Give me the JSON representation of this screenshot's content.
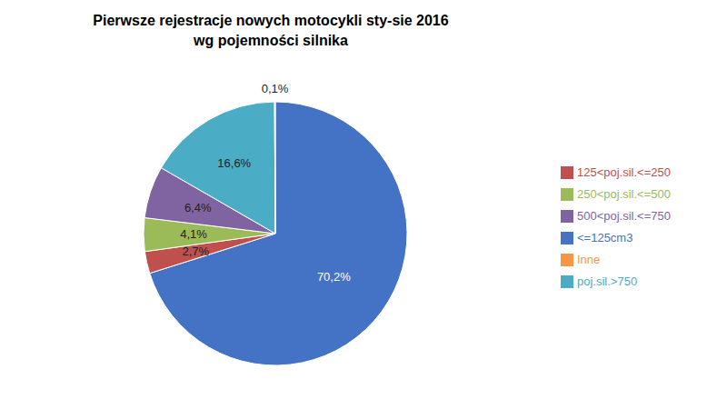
{
  "chart_data": {
    "type": "pie",
    "title": "Pierwsze rejestracje nowych motocykli sty-sie 2016\nwg pojemności silnika",
    "categories": [
      "<=125cm3",
      "125<poj.sil.<=250",
      "250<poj.sil.<=500",
      "500<poj.sil.<=750",
      "poj.sil.>750",
      "Inne"
    ],
    "values": [
      70.2,
      2.7,
      4.1,
      6.4,
      16.6,
      0.1
    ],
    "value_labels": [
      "70,2%",
      "2,7%",
      "4,1%",
      "6,4%",
      "16,6%",
      "0,1%"
    ],
    "colors": [
      "#4472C4",
      "#C0504D",
      "#9BBB59",
      "#8064A2",
      "#4BACC6",
      "#F79646"
    ],
    "data_labels": true,
    "legend": "right"
  }
}
